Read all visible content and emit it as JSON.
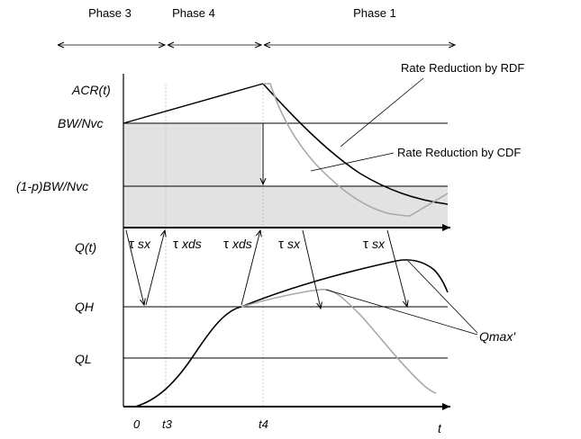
{
  "phases": {
    "phase3": "Phase 3",
    "phase4": "Phase 4",
    "phase1": "Phase 1"
  },
  "y_labels": {
    "acr": "ACR(t)",
    "bw_nvc": "BW/Nvc",
    "bw_p_nvc": "(1-p)BW/Nvc",
    "q": "Q(t)",
    "qh": "QH",
    "ql": "QL"
  },
  "x_labels": {
    "zero": "0",
    "t3": "t3",
    "t4": "t4",
    "t": "t"
  },
  "tau": {
    "sx": "sx",
    "xds": "xds",
    "symbol": "τ"
  },
  "annotations": {
    "rdf": "Rate Reduction by RDF",
    "cdf": "Rate Reduction by CDF",
    "qmax": "Qmax'"
  },
  "colors": {
    "black_curve": "#000000",
    "gray_curve": "#a8a8a8",
    "shade": "#e2e2e2",
    "dotted": "#bbbbbb"
  }
}
